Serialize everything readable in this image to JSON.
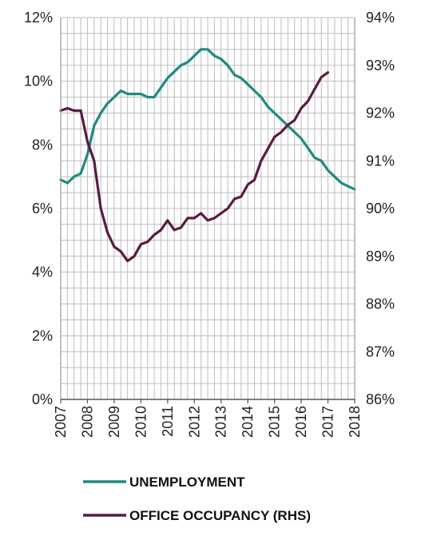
{
  "chart_data": {
    "type": "line",
    "title": "",
    "grid": "on",
    "legend_position": "bottom",
    "x_ticks": [
      "2007",
      "2008",
      "2009",
      "2010",
      "2011",
      "2012",
      "2013",
      "2014",
      "2015",
      "2016",
      "2017",
      "2018"
    ],
    "y_left": {
      "label": "",
      "ylim": [
        0,
        12
      ],
      "ticks": [
        "0%",
        "2%",
        "4%",
        "6%",
        "8%",
        "10%",
        "12%"
      ]
    },
    "y_right": {
      "label": "",
      "ylim": [
        86,
        94
      ],
      "ticks": [
        "86%",
        "87%",
        "88%",
        "89%",
        "90%",
        "91%",
        "92%",
        "93%",
        "94%"
      ]
    },
    "series": [
      {
        "name": "UNEMPLOYMENT",
        "axis": "left",
        "color": "#1f8a80",
        "points": [
          [
            2007.0,
            6.9
          ],
          [
            2007.25,
            6.8
          ],
          [
            2007.5,
            7.0
          ],
          [
            2007.75,
            7.1
          ],
          [
            2008.0,
            7.7
          ],
          [
            2008.25,
            8.6
          ],
          [
            2008.5,
            9.0
          ],
          [
            2008.75,
            9.3
          ],
          [
            2009.0,
            9.5
          ],
          [
            2009.25,
            9.7
          ],
          [
            2009.5,
            9.6
          ],
          [
            2009.75,
            9.6
          ],
          [
            2010.0,
            9.6
          ],
          [
            2010.25,
            9.5
          ],
          [
            2010.5,
            9.5
          ],
          [
            2010.75,
            9.8
          ],
          [
            2011.0,
            10.1
          ],
          [
            2011.25,
            10.3
          ],
          [
            2011.5,
            10.5
          ],
          [
            2011.75,
            10.6
          ],
          [
            2012.0,
            10.8
          ],
          [
            2012.25,
            11.0
          ],
          [
            2012.5,
            11.0
          ],
          [
            2012.75,
            10.8
          ],
          [
            2013.0,
            10.7
          ],
          [
            2013.25,
            10.5
          ],
          [
            2013.5,
            10.2
          ],
          [
            2013.75,
            10.1
          ],
          [
            2014.0,
            9.9
          ],
          [
            2014.25,
            9.7
          ],
          [
            2014.5,
            9.5
          ],
          [
            2014.75,
            9.2
          ],
          [
            2015.0,
            9.0
          ],
          [
            2015.25,
            8.8
          ],
          [
            2015.5,
            8.6
          ],
          [
            2015.75,
            8.4
          ],
          [
            2016.0,
            8.2
          ],
          [
            2016.25,
            7.9
          ],
          [
            2016.5,
            7.6
          ],
          [
            2016.75,
            7.5
          ],
          [
            2017.0,
            7.2
          ],
          [
            2017.25,
            7.0
          ],
          [
            2017.5,
            6.8
          ],
          [
            2017.75,
            6.7
          ],
          [
            2018.0,
            6.6
          ]
        ]
      },
      {
        "name": "OFFICE OCCUPANCY (RHS)",
        "axis": "right",
        "color": "#5a1a42",
        "points": [
          [
            2007.0,
            92.05
          ],
          [
            2007.25,
            92.1
          ],
          [
            2007.5,
            92.05
          ],
          [
            2007.75,
            92.05
          ],
          [
            2008.0,
            91.4
          ],
          [
            2008.25,
            91.0
          ],
          [
            2008.5,
            90.0
          ],
          [
            2008.75,
            89.5
          ],
          [
            2009.0,
            89.2
          ],
          [
            2009.25,
            89.1
          ],
          [
            2009.5,
            88.9
          ],
          [
            2009.75,
            89.0
          ],
          [
            2010.0,
            89.25
          ],
          [
            2010.25,
            89.3
          ],
          [
            2010.5,
            89.45
          ],
          [
            2010.75,
            89.55
          ],
          [
            2011.0,
            89.75
          ],
          [
            2011.25,
            89.55
          ],
          [
            2011.5,
            89.6
          ],
          [
            2011.75,
            89.8
          ],
          [
            2012.0,
            89.8
          ],
          [
            2012.25,
            89.9
          ],
          [
            2012.5,
            89.75
          ],
          [
            2012.75,
            89.8
          ],
          [
            2013.0,
            89.9
          ],
          [
            2013.25,
            90.0
          ],
          [
            2013.5,
            90.2
          ],
          [
            2013.75,
            90.25
          ],
          [
            2014.0,
            90.5
          ],
          [
            2014.25,
            90.6
          ],
          [
            2014.5,
            91.0
          ],
          [
            2014.75,
            91.25
          ],
          [
            2015.0,
            91.5
          ],
          [
            2015.25,
            91.6
          ],
          [
            2015.5,
            91.75
          ],
          [
            2015.75,
            91.85
          ],
          [
            2016.0,
            92.1
          ],
          [
            2016.25,
            92.25
          ],
          [
            2016.5,
            92.5
          ],
          [
            2016.75,
            92.75
          ],
          [
            2017.0,
            92.85
          ]
        ]
      }
    ]
  }
}
